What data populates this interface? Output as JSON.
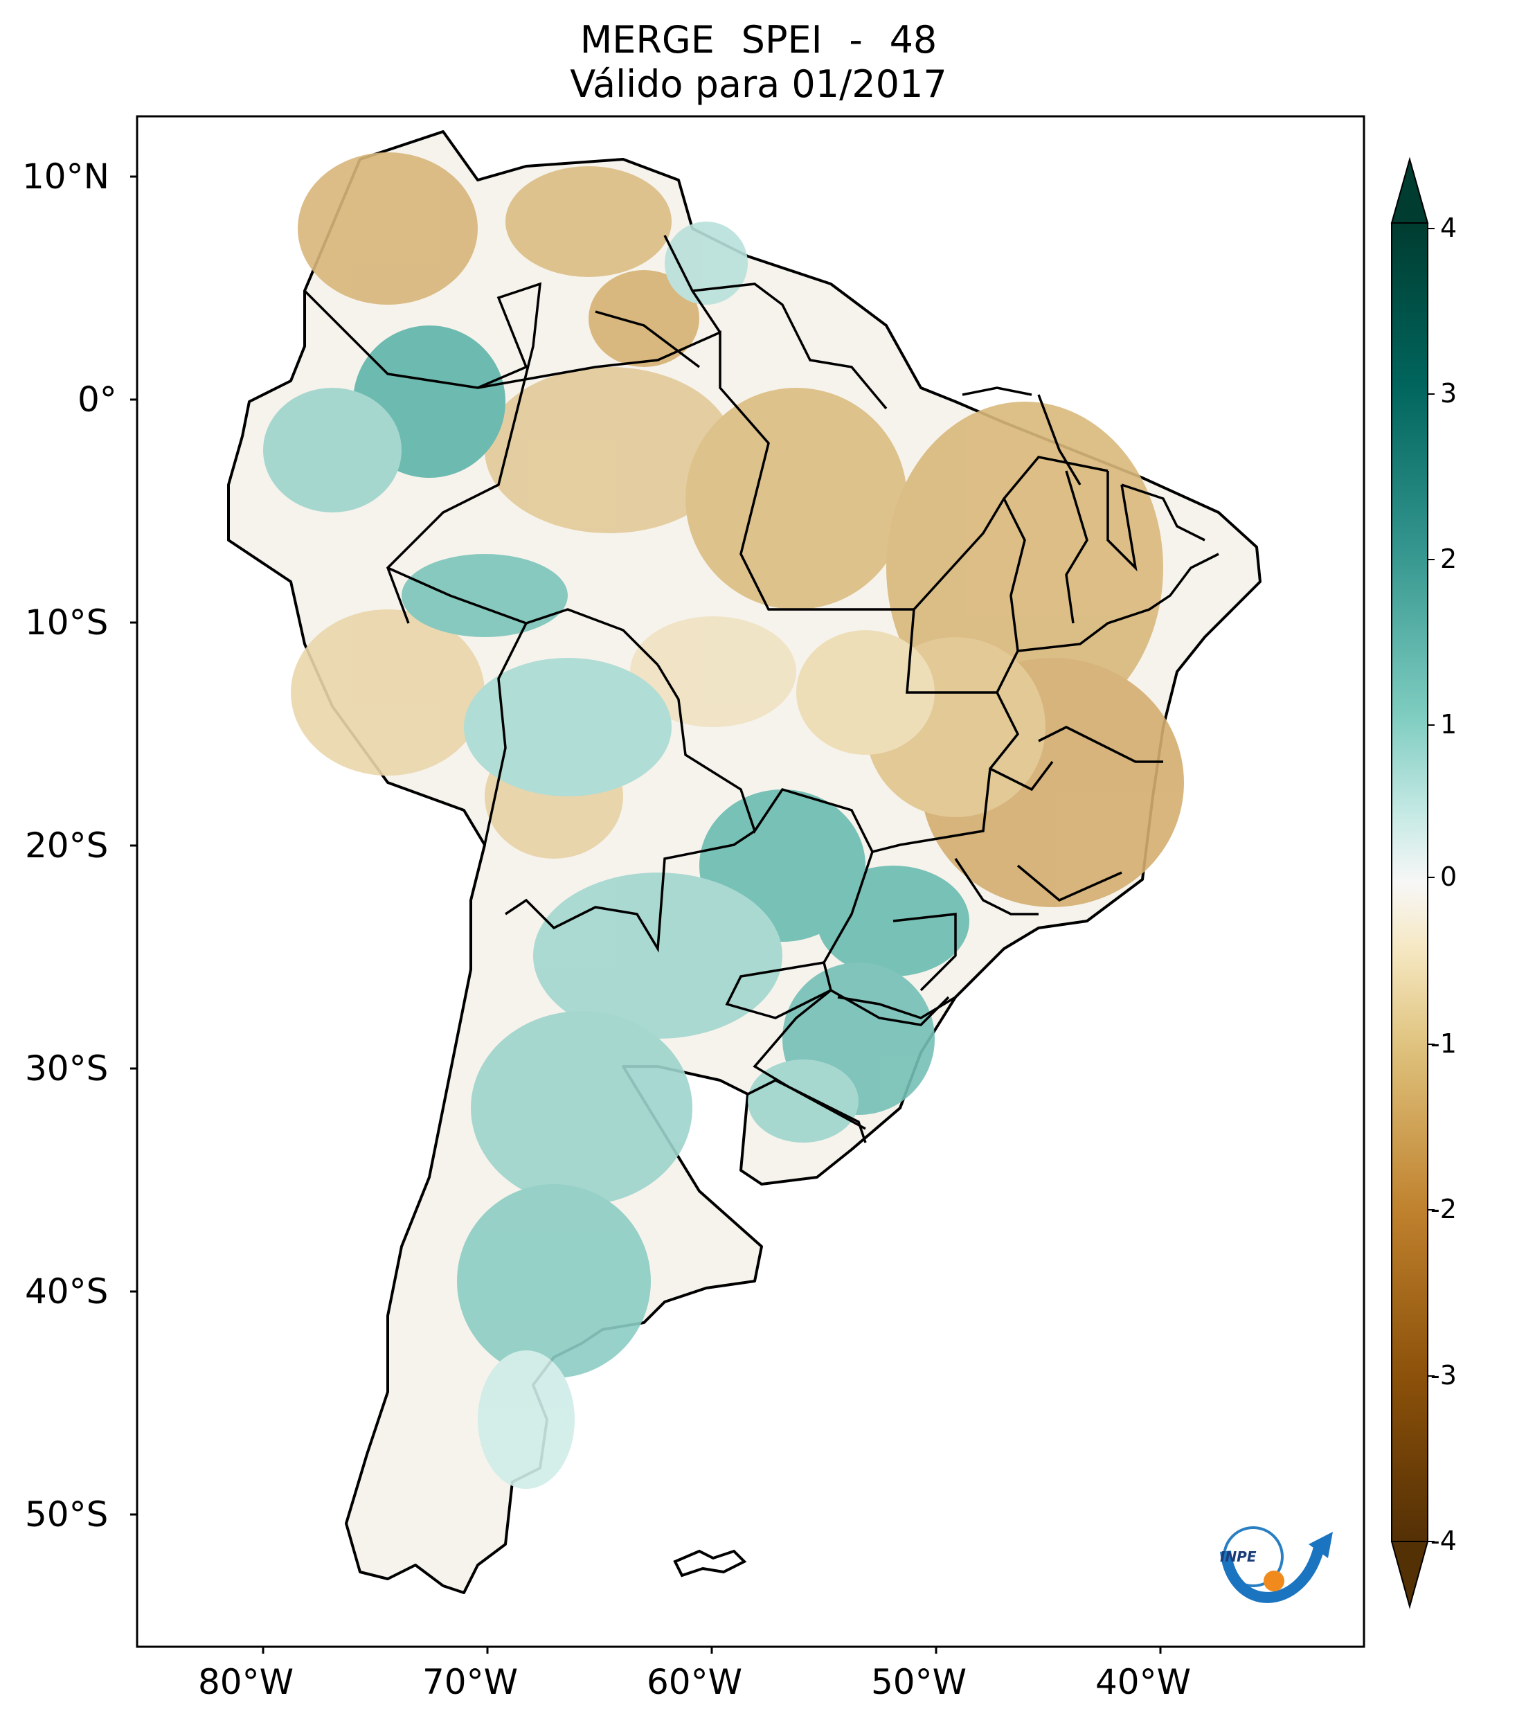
{
  "title": {
    "line1": "MERGE   SPEI - 48",
    "line2": "Válido para 01/2017"
  },
  "axes": {
    "lat_labels": [
      "10°N",
      "0°",
      "10°S",
      "20°S",
      "30°S",
      "40°S",
      "50°S"
    ],
    "lon_labels": [
      "80°W",
      "70°W",
      "60°W",
      "50°W",
      "40°W"
    ]
  },
  "colorbar": {
    "ticks": [
      "4",
      "3",
      "2",
      "1",
      "0",
      "-1",
      "-2",
      "-3",
      "-4"
    ],
    "colors": [
      "#543005",
      "#8c510a",
      "#bf812d",
      "#dfc27d",
      "#f6e8c3",
      "#f5f5f5",
      "#c7eae5",
      "#80cdc1",
      "#35978f",
      "#01665e",
      "#003c30"
    ]
  },
  "logo": {
    "text": "INPE"
  }
}
